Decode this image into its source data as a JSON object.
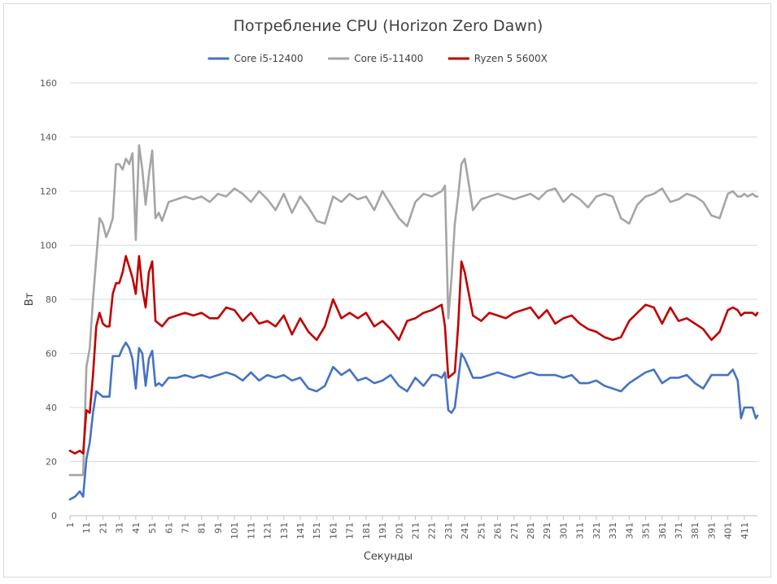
{
  "chart_data": {
    "type": "line",
    "title": "Потребление CPU (Horizon Zero Dawn)",
    "xlabel": "Секунды",
    "ylabel": "Вт",
    "ylim": [
      0,
      160
    ],
    "yticks": [
      0,
      20,
      40,
      60,
      80,
      100,
      120,
      140,
      160
    ],
    "xlim": [
      1,
      419
    ],
    "xticks": [
      1,
      11,
      21,
      31,
      41,
      51,
      61,
      71,
      81,
      91,
      101,
      111,
      121,
      131,
      141,
      151,
      161,
      171,
      181,
      191,
      201,
      211,
      221,
      231,
      241,
      251,
      261,
      271,
      281,
      291,
      301,
      311,
      321,
      331,
      341,
      351,
      361,
      371,
      381,
      391,
      401,
      411
    ],
    "grid": "horizontal",
    "legend_position": "top",
    "series": [
      {
        "name": "Core i5-12400",
        "color": "#4472c4",
        "x": [
          1,
          4,
          7,
          9,
          11,
          13,
          15,
          17,
          19,
          21,
          23,
          25,
          27,
          29,
          31,
          33,
          35,
          37,
          39,
          41,
          43,
          45,
          47,
          49,
          51,
          53,
          55,
          57,
          61,
          66,
          71,
          76,
          81,
          86,
          91,
          96,
          101,
          106,
          111,
          116,
          121,
          126,
          131,
          136,
          141,
          146,
          151,
          156,
          161,
          166,
          171,
          176,
          181,
          186,
          191,
          196,
          201,
          206,
          211,
          216,
          221,
          224,
          227,
          229,
          231,
          233,
          235,
          237,
          239,
          241,
          246,
          251,
          256,
          261,
          266,
          271,
          276,
          281,
          286,
          291,
          296,
          301,
          306,
          311,
          316,
          321,
          326,
          331,
          336,
          341,
          346,
          351,
          356,
          361,
          366,
          371,
          376,
          381,
          386,
          391,
          396,
          401,
          404,
          407,
          409,
          411,
          413,
          416,
          418,
          419
        ],
        "values": [
          6,
          7,
          9,
          7,
          21,
          27,
          38,
          46,
          45,
          44,
          44,
          44,
          59,
          59,
          59,
          62,
          64,
          62,
          58,
          47,
          62,
          60,
          48,
          58,
          61,
          48,
          49,
          48,
          51,
          51,
          52,
          51,
          52,
          51,
          52,
          53,
          52,
          50,
          53,
          50,
          52,
          51,
          52,
          50,
          51,
          47,
          46,
          48,
          55,
          52,
          54,
          50,
          51,
          49,
          50,
          52,
          48,
          46,
          51,
          48,
          52,
          52,
          51,
          53,
          39,
          38,
          40,
          50,
          60,
          58,
          51,
          51,
          52,
          53,
          52,
          51,
          52,
          53,
          52,
          52,
          52,
          51,
          52,
          49,
          49,
          50,
          48,
          47,
          46,
          49,
          51,
          53,
          54,
          49,
          51,
          51,
          52,
          49,
          47,
          52,
          52,
          52,
          54,
          50,
          36,
          40,
          40,
          40,
          36,
          37
        ]
      },
      {
        "name": "Core i5-11400",
        "color": "#a5a5a5",
        "x": [
          1,
          4,
          7,
          9,
          11,
          13,
          15,
          17,
          19,
          21,
          23,
          25,
          27,
          29,
          31,
          33,
          35,
          37,
          39,
          41,
          43,
          45,
          47,
          49,
          51,
          53,
          55,
          57,
          61,
          66,
          71,
          76,
          81,
          86,
          91,
          96,
          101,
          106,
          111,
          116,
          121,
          126,
          131,
          136,
          141,
          146,
          151,
          156,
          161,
          166,
          171,
          176,
          181,
          186,
          191,
          196,
          201,
          206,
          211,
          216,
          221,
          224,
          227,
          229,
          231,
          233,
          235,
          237,
          239,
          241,
          246,
          251,
          256,
          261,
          266,
          271,
          276,
          281,
          286,
          291,
          296,
          301,
          306,
          311,
          316,
          321,
          326,
          331,
          336,
          341,
          346,
          351,
          356,
          361,
          366,
          371,
          376,
          381,
          386,
          391,
          396,
          401,
          404,
          407,
          409,
          411,
          413,
          416,
          418,
          419
        ],
        "values": [
          15,
          15,
          15,
          15,
          55,
          62,
          80,
          95,
          110,
          108,
          103,
          106,
          110,
          130,
          130,
          128,
          132,
          130,
          134,
          102,
          137,
          128,
          115,
          126,
          135,
          110,
          112,
          109,
          116,
          117,
          118,
          117,
          118,
          116,
          119,
          118,
          121,
          119,
          116,
          120,
          117,
          113,
          119,
          112,
          118,
          114,
          109,
          108,
          118,
          116,
          119,
          117,
          118,
          113,
          120,
          115,
          110,
          107,
          116,
          119,
          118,
          119,
          120,
          122,
          73,
          88,
          108,
          118,
          130,
          132,
          113,
          117,
          118,
          119,
          118,
          117,
          118,
          119,
          117,
          120,
          121,
          116,
          119,
          117,
          114,
          118,
          119,
          118,
          110,
          108,
          115,
          118,
          119,
          121,
          116,
          117,
          119,
          118,
          116,
          111,
          110,
          119,
          120,
          118,
          118,
          119,
          118,
          119,
          118,
          118
        ]
      },
      {
        "name": "Ryzen 5 5600X",
        "color": "#c00000",
        "x": [
          1,
          4,
          7,
          9,
          11,
          13,
          15,
          17,
          19,
          21,
          23,
          25,
          27,
          29,
          31,
          33,
          35,
          37,
          39,
          41,
          43,
          45,
          47,
          49,
          51,
          53,
          55,
          57,
          61,
          66,
          71,
          76,
          81,
          86,
          91,
          96,
          101,
          106,
          111,
          116,
          121,
          126,
          131,
          136,
          141,
          146,
          151,
          156,
          161,
          166,
          171,
          176,
          181,
          186,
          191,
          196,
          201,
          206,
          211,
          216,
          221,
          224,
          227,
          229,
          231,
          233,
          235,
          237,
          239,
          241,
          246,
          251,
          256,
          261,
          266,
          271,
          276,
          281,
          286,
          291,
          296,
          301,
          306,
          311,
          316,
          321,
          326,
          331,
          336,
          341,
          346,
          351,
          356,
          361,
          366,
          371,
          376,
          381,
          386,
          391,
          396,
          401,
          404,
          407,
          409,
          411,
          413,
          416,
          418,
          419
        ],
        "values": [
          24,
          23,
          24,
          23,
          39,
          38,
          52,
          70,
          75,
          71,
          70,
          70,
          82,
          86,
          86,
          90,
          96,
          92,
          88,
          82,
          96,
          84,
          77,
          90,
          94,
          72,
          71,
          70,
          73,
          74,
          75,
          74,
          75,
          73,
          73,
          77,
          76,
          72,
          75,
          71,
          72,
          70,
          74,
          67,
          73,
          68,
          65,
          70,
          80,
          73,
          75,
          73,
          75,
          70,
          72,
          69,
          65,
          72,
          73,
          75,
          76,
          77,
          78,
          70,
          51,
          52,
          53,
          70,
          94,
          90,
          74,
          72,
          75,
          74,
          73,
          75,
          76,
          77,
          73,
          76,
          71,
          73,
          74,
          71,
          69,
          68,
          66,
          65,
          66,
          72,
          75,
          78,
          77,
          71,
          77,
          72,
          73,
          71,
          69,
          65,
          68,
          76,
          77,
          76,
          74,
          75,
          75,
          75,
          74,
          75
        ]
      }
    ]
  }
}
